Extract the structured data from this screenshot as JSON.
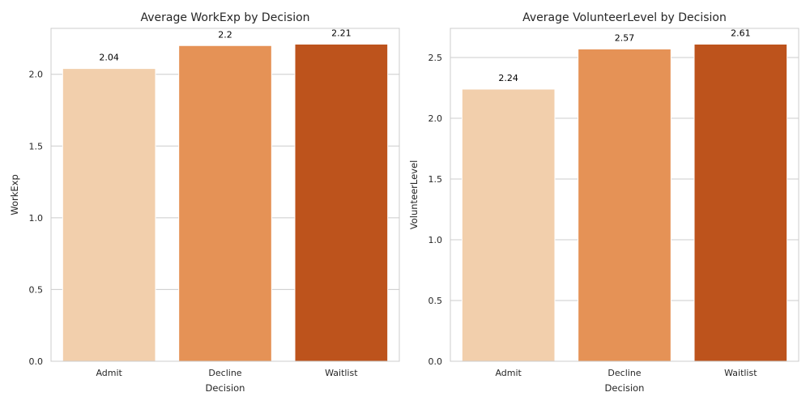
{
  "chart_data": [
    {
      "type": "bar",
      "title": "Average WorkExp by Decision",
      "xlabel": "Decision",
      "ylabel": "WorkExp",
      "categories": [
        "Admit",
        "Decline",
        "Waitlist"
      ],
      "values": [
        2.04,
        2.2,
        2.21
      ],
      "value_labels": [
        "2.04",
        "2.2",
        "2.21"
      ],
      "colors": [
        "#f2cfac",
        "#e59256",
        "#bd531c"
      ],
      "ylim": [
        0,
        2.32
      ],
      "yticks": [
        0.0,
        0.5,
        1.0,
        1.5,
        2.0
      ],
      "ytick_labels": [
        "0.0",
        "0.5",
        "1.0",
        "1.5",
        "2.0"
      ],
      "grid": true
    },
    {
      "type": "bar",
      "title": "Average VolunteerLevel by Decision",
      "xlabel": "Decision",
      "ylabel": "VolunteerLevel",
      "categories": [
        "Admit",
        "Decline",
        "Waitlist"
      ],
      "values": [
        2.24,
        2.57,
        2.61
      ],
      "value_labels": [
        "2.24",
        "2.57",
        "2.61"
      ],
      "colors": [
        "#f2cfac",
        "#e59256",
        "#bd531c"
      ],
      "ylim": [
        0,
        2.74
      ],
      "yticks": [
        0.0,
        0.5,
        1.0,
        1.5,
        2.0,
        2.5
      ],
      "ytick_labels": [
        "0.0",
        "0.5",
        "1.0",
        "1.5",
        "2.0",
        "2.5"
      ],
      "grid": true
    }
  ]
}
